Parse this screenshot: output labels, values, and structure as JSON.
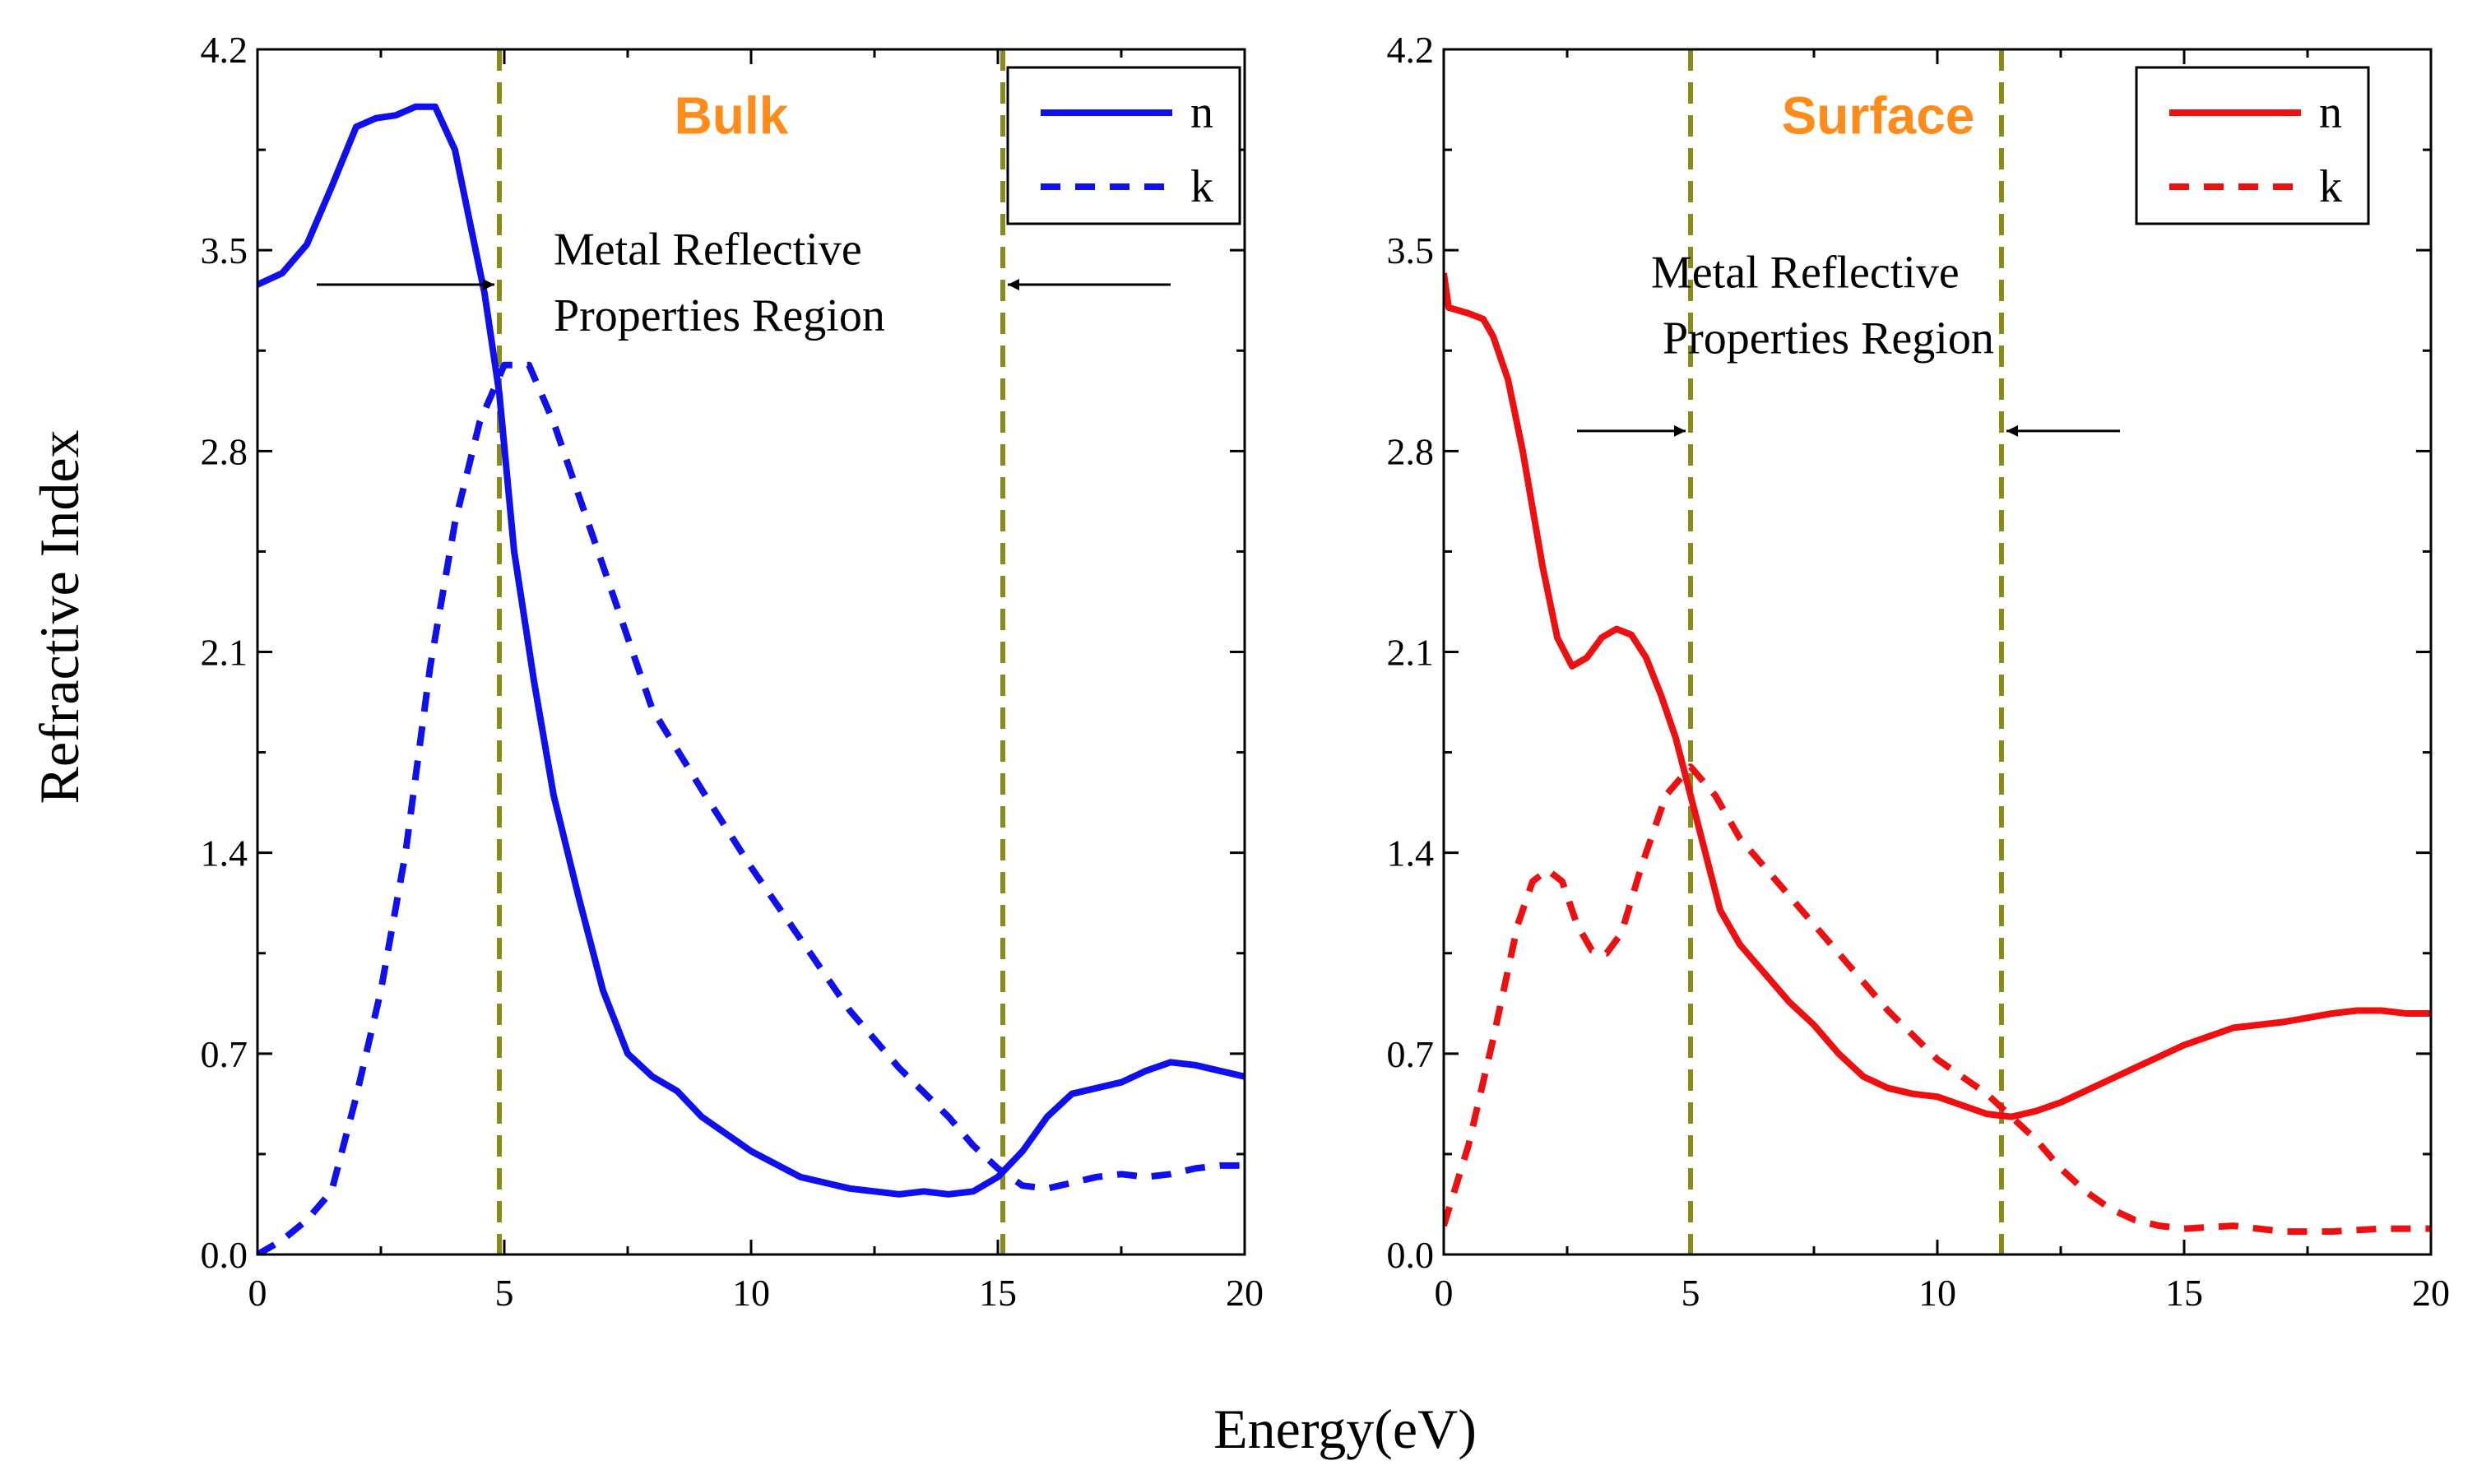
{
  "figure": {
    "xlabel": "Energy(eV)",
    "ylabel": "Refractive Index",
    "colors": {
      "bulk": "#1010ee",
      "surface": "#ee1010",
      "marker": "#8b8b1a",
      "title": "#ff8c1a"
    }
  },
  "chart_data": [
    {
      "type": "line",
      "title": "Bulk",
      "xlabel": "Energy(eV)",
      "ylabel": "Refractive Index",
      "xlim": [
        0,
        20
      ],
      "ylim": [
        0,
        4.2
      ],
      "xticks": [
        0,
        5,
        10,
        15,
        20
      ],
      "xtick_labels": [
        "0",
        "5",
        "10",
        "15",
        "20"
      ],
      "yticks": [
        0,
        0.7,
        1.4,
        2.1,
        2.8,
        3.5,
        4.2
      ],
      "ytick_labels": [
        "0.0",
        "0.7",
        "1.4",
        "2.1",
        "2.8",
        "3.5",
        "4.2"
      ],
      "legend": {
        "position": "top-right",
        "entries": [
          "n",
          "k"
        ]
      },
      "annotation": {
        "line1": "Metal Reflective",
        "line2": "Properties Region"
      },
      "vlines": [
        4.9,
        15.1
      ],
      "arrows": [
        {
          "from": 1.2,
          "to": 4.8,
          "y": 3.38
        },
        {
          "from": 18.5,
          "to": 15.2,
          "y": 3.38
        }
      ],
      "series": [
        {
          "name": "n",
          "style": "solid",
          "x": [
            0,
            0.5,
            1,
            1.5,
            2,
            2.4,
            2.8,
            3.2,
            3.6,
            4,
            4.3,
            4.6,
            4.9,
            5.2,
            5.6,
            6,
            6.5,
            7,
            7.5,
            8,
            8.5,
            9,
            10,
            11,
            12,
            13,
            13.5,
            14,
            14.5,
            15,
            15.5,
            16,
            16.5,
            17,
            17.5,
            18,
            18.5,
            19,
            19.5,
            20
          ],
          "y": [
            3.38,
            3.42,
            3.52,
            3.72,
            3.93,
            3.96,
            3.97,
            4.0,
            4.0,
            3.85,
            3.6,
            3.35,
            3.0,
            2.45,
            2.0,
            1.6,
            1.25,
            0.92,
            0.7,
            0.62,
            0.57,
            0.48,
            0.36,
            0.27,
            0.23,
            0.21,
            0.22,
            0.21,
            0.22,
            0.27,
            0.36,
            0.48,
            0.56,
            0.58,
            0.6,
            0.64,
            0.67,
            0.66,
            0.64,
            0.62
          ]
        },
        {
          "name": "k",
          "style": "dashed",
          "x": [
            0,
            0.5,
            1,
            1.5,
            2,
            2.5,
            3,
            3.5,
            4,
            4.5,
            5,
            5.5,
            6,
            7,
            8,
            9,
            10,
            11,
            12,
            13,
            14,
            14.5,
            15,
            15.5,
            16,
            16.5,
            17,
            17.5,
            18,
            18.5,
            19,
            19.5,
            20
          ],
          "y": [
            0.0,
            0.05,
            0.12,
            0.22,
            0.55,
            0.92,
            1.4,
            2.05,
            2.55,
            2.9,
            3.1,
            3.1,
            2.9,
            2.4,
            1.9,
            1.62,
            1.35,
            1.1,
            0.85,
            0.65,
            0.48,
            0.38,
            0.3,
            0.24,
            0.23,
            0.25,
            0.27,
            0.28,
            0.27,
            0.28,
            0.3,
            0.31,
            0.31
          ]
        }
      ]
    },
    {
      "type": "line",
      "title": "Surface",
      "xlabel": "Energy(eV)",
      "ylabel": "Refractive Index",
      "xlim": [
        0,
        20
      ],
      "ylim": [
        0,
        4.2
      ],
      "xticks": [
        0,
        5,
        10,
        15,
        20
      ],
      "xtick_labels": [
        "0",
        "5",
        "10",
        "15",
        "20"
      ],
      "yticks": [
        0,
        0.7,
        1.4,
        2.1,
        2.8,
        3.5,
        4.2
      ],
      "ytick_labels": [
        "0.0",
        "0.7",
        "1.4",
        "2.1",
        "2.8",
        "3.5",
        "4.2"
      ],
      "legend": {
        "position": "top-right",
        "entries": [
          "n",
          "k"
        ]
      },
      "annotation": {
        "line1": "Metal Reflective",
        "line2": "Properties Region"
      },
      "vlines": [
        5.0,
        11.3
      ],
      "arrows": [
        {
          "from": 2.7,
          "to": 4.9,
          "y": 2.87
        },
        {
          "from": 13.7,
          "to": 11.4,
          "y": 2.87
        }
      ],
      "series": [
        {
          "name": "n",
          "style": "solid",
          "x": [
            0,
            0.1,
            0.3,
            0.5,
            0.8,
            1,
            1.3,
            1.6,
            2,
            2.3,
            2.6,
            2.9,
            3.2,
            3.5,
            3.8,
            4.1,
            4.4,
            4.7,
            5,
            5.3,
            5.6,
            6,
            6.5,
            7,
            7.5,
            8,
            8.5,
            9,
            9.5,
            10,
            10.5,
            11,
            11.5,
            12,
            12.5,
            13,
            14,
            15,
            16,
            17,
            18,
            18.5,
            19,
            19.5,
            20
          ],
          "y": [
            3.42,
            3.3,
            3.29,
            3.28,
            3.26,
            3.2,
            3.05,
            2.8,
            2.4,
            2.15,
            2.05,
            2.08,
            2.15,
            2.18,
            2.16,
            2.08,
            1.95,
            1.8,
            1.6,
            1.4,
            1.2,
            1.08,
            0.98,
            0.88,
            0.8,
            0.7,
            0.62,
            0.58,
            0.56,
            0.55,
            0.52,
            0.49,
            0.48,
            0.5,
            0.53,
            0.57,
            0.65,
            0.73,
            0.79,
            0.81,
            0.84,
            0.85,
            0.85,
            0.84,
            0.84
          ]
        },
        {
          "name": "k",
          "style": "dashed",
          "x": [
            0,
            0.5,
            1,
            1.5,
            1.8,
            2.1,
            2.4,
            2.7,
            3,
            3.3,
            3.6,
            4,
            4.5,
            5,
            5.5,
            6,
            7,
            8,
            9,
            10,
            11,
            11.5,
            12,
            12.5,
            13,
            13.5,
            14,
            14.5,
            15,
            16,
            17,
            18,
            19,
            20
          ],
          "y": [
            0.1,
            0.38,
            0.75,
            1.15,
            1.3,
            1.34,
            1.3,
            1.15,
            1.06,
            1.05,
            1.12,
            1.35,
            1.6,
            1.7,
            1.6,
            1.45,
            1.25,
            1.05,
            0.85,
            0.68,
            0.56,
            0.48,
            0.4,
            0.3,
            0.22,
            0.16,
            0.12,
            0.1,
            0.09,
            0.1,
            0.08,
            0.08,
            0.09,
            0.09
          ]
        }
      ]
    }
  ]
}
